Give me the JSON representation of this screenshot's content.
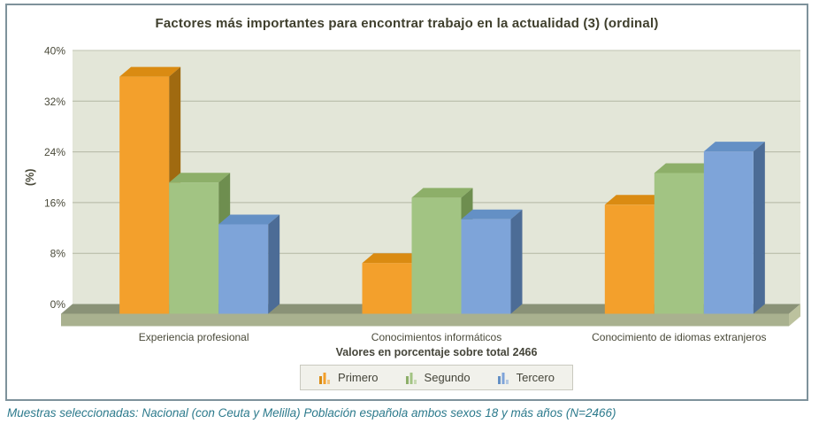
{
  "chart": {
    "title": "Factores más importantes para encontrar trabajo en la actualidad (3) (ordinal)",
    "y_axis_label": "(%)",
    "x_axis_label": "Valores en porcentaje sobre total 2466"
  },
  "chart_data": {
    "type": "bar",
    "title": "Factores más importantes para encontrar trabajo en la actualidad (3) (ordinal)",
    "xlabel": "Valores en porcentaje sobre total 2466",
    "ylabel": "(%)",
    "categories": [
      "Experiencia profesional",
      "Conocimientos informáticos",
      "Conocimiento de idiomas extranjeros"
    ],
    "series": [
      {
        "name": "Primero",
        "values": [
          37.4,
          8.0,
          17.2
        ],
        "color": "#F3A02C",
        "color_top": "#DA8B12",
        "color_side": "#A06A10"
      },
      {
        "name": "Segundo",
        "values": [
          20.7,
          18.3,
          22.2
        ],
        "color": "#A2C483",
        "color_top": "#8DAF69",
        "color_side": "#6E8E4F"
      },
      {
        "name": "Tercero",
        "values": [
          14.1,
          14.9,
          25.6
        ],
        "color": "#7EA4D9",
        "color_top": "#6490C5",
        "color_side": "#4C6C96"
      }
    ],
    "ylim": [
      0,
      40
    ],
    "yticks": [
      0,
      8,
      16,
      24,
      32,
      40
    ],
    "ytick_suffix": "%",
    "grid": true,
    "legend_position": "bottom",
    "style": "3d-bars"
  },
  "colors": {
    "frame_border": "#7E929B",
    "plot_bg": "#E3E6D8",
    "gridline": "#B3B7A3",
    "plot_top_line": "#BFC3AF",
    "floor_top": "#8A9277",
    "floor_front": "#A9B18F",
    "floor_end": "#BCC29E",
    "axis_text": "#4A4A3A",
    "title_text": "#3F3F2D",
    "footer_text": "#2C7A8C",
    "legend_bg": "#F1F1EB",
    "legend_border": "#C9C9BF"
  },
  "footer": {
    "text": "Muestras seleccionadas: Nacional (con Ceuta y Melilla) Población española ambos sexos 18 y más años (N=2466)"
  }
}
